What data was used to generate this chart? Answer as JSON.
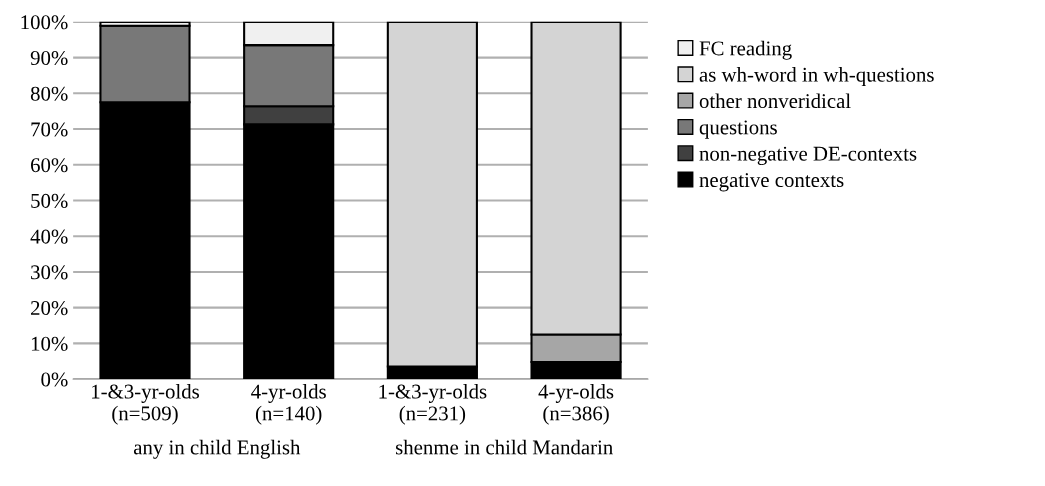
{
  "chart_data": {
    "type": "bar",
    "stacked": true,
    "categories": [
      "1-&3-yr-olds\n(n=509)",
      "4-yr-olds\n(n=140)",
      "1-&3-yr-olds\n(n=231)",
      "4-yr-olds\n(n=386)"
    ],
    "series": [
      {
        "name": "negative contexts",
        "color": "#000000",
        "values": [
          77.5,
          71.3,
          3.5,
          4.8
        ]
      },
      {
        "name": "non-negative DE-contexts",
        "color": "#404040",
        "values": [
          0,
          5.1,
          0,
          0
        ]
      },
      {
        "name": "questions",
        "color": "#787878",
        "values": [
          21.4,
          17.1,
          0,
          0
        ]
      },
      {
        "name": "other nonveridical",
        "color": "#a6a6a6",
        "values": [
          0,
          0,
          0,
          7.7
        ]
      },
      {
        "name": "as wh-word in wh-questions",
        "color": "#d4d4d4",
        "values": [
          0,
          0,
          96.5,
          87.5
        ]
      },
      {
        "name": "FC reading",
        "color": "#f0f0f0",
        "values": [
          1.1,
          6.5,
          0,
          0
        ]
      }
    ],
    "ylim": [
      0,
      100
    ],
    "yticks": [
      {
        "value": 0,
        "label": "0%"
      },
      {
        "value": 10,
        "label": "10%"
      },
      {
        "value": 20,
        "label": "20%"
      },
      {
        "value": 30,
        "label": "30%"
      },
      {
        "value": 40,
        "label": "40%"
      },
      {
        "value": 50,
        "label": "50%"
      },
      {
        "value": 60,
        "label": "60%"
      },
      {
        "value": 70,
        "label": "70%"
      },
      {
        "value": 80,
        "label": "80%"
      },
      {
        "value": 90,
        "label": "90%"
      },
      {
        "value": 100,
        "label": "100%"
      }
    ],
    "grid": "y",
    "legend": "right",
    "annotations": [
      "any in child English",
      "shenme in child Mandarin"
    ]
  }
}
